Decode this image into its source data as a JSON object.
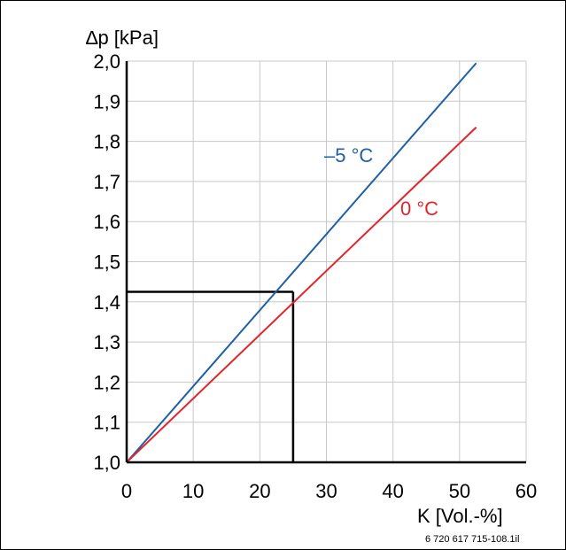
{
  "chart_data": {
    "type": "line",
    "ylabel": "∆p [kPa]",
    "xlabel": "K [Vol.-%]",
    "xlim": [
      0,
      60
    ],
    "ylim": [
      1.0,
      2.0
    ],
    "x_ticks": [
      "0",
      "10",
      "20",
      "30",
      "40",
      "50",
      "60"
    ],
    "y_ticks": [
      "1,0",
      "1,1",
      "1,2",
      "1,3",
      "1,4",
      "1,5",
      "1,6",
      "1,7",
      "1,8",
      "1,9",
      "2,0"
    ],
    "grid": true,
    "series": [
      {
        "name": "–5 °C",
        "color": "#1f5fa8",
        "x": [
          0,
          52.5
        ],
        "y": [
          1.0,
          1.995
        ]
      },
      {
        "name": "0 °C",
        "color": "#e3242b",
        "x": [
          0,
          52.5
        ],
        "y": [
          1.0,
          1.835
        ]
      }
    ],
    "annotation": {
      "x": 25,
      "y": 1.425
    },
    "figure_code": "6 720 617 715-108.1il"
  }
}
